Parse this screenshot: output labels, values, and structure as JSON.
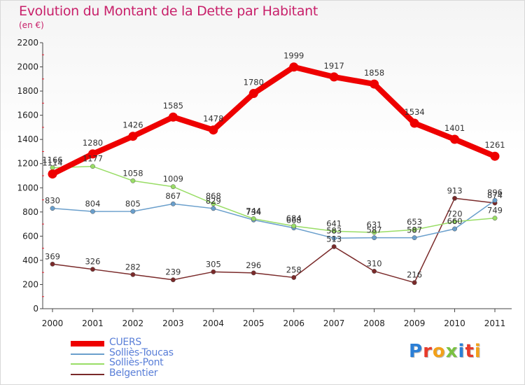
{
  "chart_data": {
    "type": "line",
    "title": "Evolution du Montant de la Dette par Habitant",
    "subtitle": "(en €)",
    "x": [
      "2000",
      "2001",
      "2002",
      "2003",
      "2004",
      "2005",
      "2006",
      "2007",
      "2008",
      "2009",
      "2010",
      "2011"
    ],
    "ylim": [
      0,
      2200
    ],
    "yticks": [
      "0",
      "200",
      "400",
      "600",
      "800",
      "1000",
      "1200",
      "1400",
      "1600",
      "1800",
      "2000",
      "2200"
    ],
    "grid": false,
    "legend_position": "bottom-left",
    "series": [
      {
        "name": "CUERS",
        "color": "#ee0000",
        "values": [
          1114,
          1280,
          1426,
          1585,
          1478,
          1780,
          1999,
          1917,
          1858,
          1534,
          1401,
          1261
        ],
        "labels": [
          "1114",
          "1280",
          "1426",
          "1585",
          "1478",
          "1780",
          "1999",
          "1917",
          "1858",
          "1534",
          "1401",
          "1261"
        ]
      },
      {
        "name": "Solliès-Toucas",
        "color": "#6a9fcc",
        "values": [
          830,
          804,
          805,
          867,
          829,
          734,
          668,
          583,
          587,
          587,
          660,
          896
        ],
        "labels": [
          "830",
          "804",
          "805",
          "867",
          "829",
          "734",
          "668",
          "583",
          "587",
          "587",
          "660",
          "896"
        ]
      },
      {
        "name": "Solliès-Pont",
        "color": "#99dd66",
        "values": [
          1166,
          1177,
          1058,
          1009,
          868,
          744,
          684,
          641,
          631,
          653,
          720,
          749
        ],
        "labels": [
          "1166",
          "1177",
          "1058",
          "1009",
          "868",
          "744",
          "684",
          "641",
          "631",
          "653",
          "720",
          "749"
        ]
      },
      {
        "name": "Belgentier",
        "color": "#7a2a2a",
        "values": [
          369,
          326,
          282,
          239,
          305,
          296,
          258,
          513,
          310,
          216,
          913,
          874
        ],
        "labels": [
          "369",
          "326",
          "282",
          "239",
          "305",
          "296",
          "258",
          "513",
          "310",
          "216",
          "913",
          "874"
        ]
      }
    ]
  },
  "logo": {
    "letters": [
      {
        "ch": "P",
        "color": "#2b7fd6"
      },
      {
        "ch": "r",
        "color": "#e83a2a"
      },
      {
        "ch": "o",
        "color": "#f2a11a"
      },
      {
        "ch": "x",
        "color": "#7ac142"
      },
      {
        "ch": "i",
        "color": "#2b7fd6"
      },
      {
        "ch": "t",
        "color": "#e83a2a"
      },
      {
        "ch": "i",
        "color": "#f2a11a"
      }
    ]
  }
}
